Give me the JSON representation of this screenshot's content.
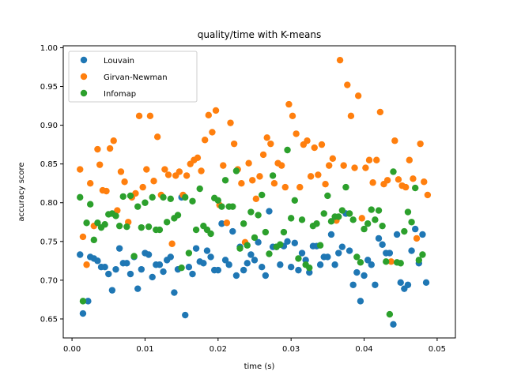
{
  "chart_data": {
    "type": "scatter",
    "title": "quality/time with K-means",
    "xlabel": "time (s)",
    "ylabel": "accuracy score",
    "xlim": [
      -0.0012,
      0.0525
    ],
    "ylim": [
      0.6255,
      1.0025
    ],
    "xticks": [
      0.0,
      0.01,
      0.02,
      0.03,
      0.04,
      0.05
    ],
    "xtick_labels": [
      "0.00",
      "0.01",
      "0.02",
      "0.03",
      "0.04",
      "0.05"
    ],
    "yticks": [
      0.65,
      0.7,
      0.75,
      0.8,
      0.85,
      0.9,
      0.95,
      1.0
    ],
    "ytick_labels": [
      "0.65",
      "0.70",
      "0.75",
      "0.80",
      "0.85",
      "0.90",
      "0.95",
      "1.00"
    ],
    "grid": false,
    "legend": "top-left",
    "series": [
      {
        "name": "Louvain",
        "color": "#1f77b4",
        "points": [
          [
            0.0011,
            0.733
          ],
          [
            0.0015,
            0.657
          ],
          [
            0.0022,
            0.673
          ],
          [
            0.0025,
            0.73
          ],
          [
            0.003,
            0.728
          ],
          [
            0.0035,
            0.725
          ],
          [
            0.004,
            0.717
          ],
          [
            0.0045,
            0.717
          ],
          [
            0.005,
            0.708
          ],
          [
            0.0055,
            0.687
          ],
          [
            0.006,
            0.714
          ],
          [
            0.0065,
            0.741
          ],
          [
            0.007,
            0.722
          ],
          [
            0.0075,
            0.722
          ],
          [
            0.008,
            0.708
          ],
          [
            0.0085,
            0.73
          ],
          [
            0.009,
            0.689
          ],
          [
            0.0095,
            0.714
          ],
          [
            0.01,
            0.735
          ],
          [
            0.0105,
            0.733
          ],
          [
            0.011,
            0.704
          ],
          [
            0.0115,
            0.72
          ],
          [
            0.012,
            0.72
          ],
          [
            0.0125,
            0.711
          ],
          [
            0.013,
            0.726
          ],
          [
            0.0135,
            0.73
          ],
          [
            0.014,
            0.684
          ],
          [
            0.0145,
            0.714
          ],
          [
            0.015,
            0.807
          ],
          [
            0.0155,
            0.655
          ],
          [
            0.016,
            0.717
          ],
          [
            0.0165,
            0.708
          ],
          [
            0.017,
            0.741
          ],
          [
            0.0175,
            0.724
          ],
          [
            0.018,
            0.722
          ],
          [
            0.0185,
            0.738
          ],
          [
            0.019,
            0.73
          ],
          [
            0.0195,
            0.713
          ],
          [
            0.02,
            0.713
          ],
          [
            0.0205,
            0.773
          ],
          [
            0.021,
            0.726
          ],
          [
            0.0215,
            0.72
          ],
          [
            0.022,
            0.763
          ],
          [
            0.0225,
            0.706
          ],
          [
            0.023,
            0.743
          ],
          [
            0.0235,
            0.713
          ],
          [
            0.024,
            0.722
          ],
          [
            0.0245,
            0.733
          ],
          [
            0.025,
            0.726
          ],
          [
            0.0255,
            0.749
          ],
          [
            0.026,
            0.717
          ],
          [
            0.0265,
            0.706
          ],
          [
            0.027,
            0.789
          ],
          [
            0.0275,
            0.743
          ],
          [
            0.028,
            0.743
          ],
          [
            0.0285,
            0.72
          ],
          [
            0.029,
            0.744
          ],
          [
            0.0295,
            0.75
          ],
          [
            0.03,
            0.717
          ],
          [
            0.0305,
            0.748
          ],
          [
            0.031,
            0.713
          ],
          [
            0.0315,
            0.735
          ],
          [
            0.032,
            0.726
          ],
          [
            0.0325,
            0.71
          ],
          [
            0.033,
            0.744
          ],
          [
            0.0335,
            0.744
          ],
          [
            0.034,
            0.72
          ],
          [
            0.0345,
            0.73
          ],
          [
            0.035,
            0.73
          ],
          [
            0.0355,
            0.759
          ],
          [
            0.036,
            0.72
          ],
          [
            0.0365,
            0.735
          ],
          [
            0.037,
            0.743
          ],
          [
            0.0375,
            0.786
          ],
          [
            0.038,
            0.738
          ],
          [
            0.0385,
            0.694
          ],
          [
            0.039,
            0.71
          ],
          [
            0.0395,
            0.673
          ],
          [
            0.04,
            0.706
          ],
          [
            0.0405,
            0.726
          ],
          [
            0.041,
            0.72
          ],
          [
            0.0415,
            0.694
          ],
          [
            0.042,
            0.754
          ],
          [
            0.0425,
            0.746
          ],
          [
            0.043,
            0.735
          ],
          [
            0.0435,
            0.735
          ],
          [
            0.044,
            0.643
          ],
          [
            0.0445,
            0.759
          ],
          [
            0.045,
            0.697
          ],
          [
            0.0455,
            0.689
          ],
          [
            0.046,
            0.694
          ],
          [
            0.0465,
            0.738
          ],
          [
            0.047,
            0.766
          ],
          [
            0.0475,
            0.722
          ],
          [
            0.048,
            0.759
          ],
          [
            0.0485,
            0.697
          ]
        ]
      },
      {
        "name": "Girvan-Newman",
        "color": "#ff7f0e",
        "points": [
          [
            0.0011,
            0.843
          ],
          [
            0.0015,
            0.756
          ],
          [
            0.002,
            0.72
          ],
          [
            0.0025,
            0.825
          ],
          [
            0.003,
            0.77
          ],
          [
            0.0035,
            0.869
          ],
          [
            0.0038,
            0.849
          ],
          [
            0.0042,
            0.816
          ],
          [
            0.0047,
            0.815
          ],
          [
            0.0052,
            0.87
          ],
          [
            0.0057,
            0.88
          ],
          [
            0.0062,
            0.79
          ],
          [
            0.0067,
            0.84
          ],
          [
            0.0072,
            0.827
          ],
          [
            0.0077,
            0.775
          ],
          [
            0.0082,
            0.807
          ],
          [
            0.0087,
            0.812
          ],
          [
            0.0092,
            0.912
          ],
          [
            0.0097,
            0.82
          ],
          [
            0.0102,
            0.843
          ],
          [
            0.0107,
            0.912
          ],
          [
            0.0112,
            0.828
          ],
          [
            0.0117,
            0.885
          ],
          [
            0.0122,
            0.81
          ],
          [
            0.0127,
            0.843
          ],
          [
            0.0132,
            0.836
          ],
          [
            0.0137,
            0.747
          ],
          [
            0.0142,
            0.835
          ],
          [
            0.0147,
            0.84
          ],
          [
            0.0152,
            0.81
          ],
          [
            0.0157,
            0.835
          ],
          [
            0.0162,
            0.85
          ],
          [
            0.0167,
            0.855
          ],
          [
            0.0172,
            0.858
          ],
          [
            0.0177,
            0.841
          ],
          [
            0.0182,
            0.881
          ],
          [
            0.0187,
            0.913
          ],
          [
            0.0192,
            0.891
          ],
          [
            0.0197,
            0.919
          ],
          [
            0.0202,
            0.797
          ],
          [
            0.0207,
            0.848
          ],
          [
            0.0212,
            0.774
          ],
          [
            0.0217,
            0.903
          ],
          [
            0.0222,
            0.876
          ],
          [
            0.0227,
            0.843
          ],
          [
            0.0232,
            0.825
          ],
          [
            0.0237,
            0.749
          ],
          [
            0.0242,
            0.851
          ],
          [
            0.0247,
            0.829
          ],
          [
            0.0252,
            0.805
          ],
          [
            0.0257,
            0.834
          ],
          [
            0.0262,
            0.862
          ],
          [
            0.0267,
            0.884
          ],
          [
            0.0272,
            0.876
          ],
          [
            0.0277,
            0.825
          ],
          [
            0.0282,
            0.851
          ],
          [
            0.0287,
            0.848
          ],
          [
            0.0292,
            0.82
          ],
          [
            0.0297,
            0.927
          ],
          [
            0.0302,
            0.912
          ],
          [
            0.0307,
            0.889
          ],
          [
            0.0312,
            0.82
          ],
          [
            0.0317,
            0.875
          ],
          [
            0.0322,
            0.88
          ],
          [
            0.0327,
            0.834
          ],
          [
            0.0332,
            0.871
          ],
          [
            0.0337,
            0.836
          ],
          [
            0.0342,
            0.875
          ],
          [
            0.0347,
            0.824
          ],
          [
            0.0352,
            0.848
          ],
          [
            0.0357,
            0.857
          ],
          [
            0.0362,
            0.777
          ],
          [
            0.0367,
            0.984
          ],
          [
            0.0372,
            0.848
          ],
          [
            0.0377,
            0.952
          ],
          [
            0.0382,
            0.912
          ],
          [
            0.0387,
            0.845
          ],
          [
            0.0392,
            0.938
          ],
          [
            0.0397,
            0.78
          ],
          [
            0.0402,
            0.845
          ],
          [
            0.0407,
            0.855
          ],
          [
            0.0412,
            0.826
          ],
          [
            0.0417,
            0.855
          ],
          [
            0.0422,
            0.917
          ],
          [
            0.0427,
            0.824
          ],
          [
            0.0432,
            0.829
          ],
          [
            0.0437,
            0.724
          ],
          [
            0.0442,
            0.88
          ],
          [
            0.0447,
            0.83
          ],
          [
            0.0452,
            0.822
          ],
          [
            0.0457,
            0.82
          ],
          [
            0.0462,
            0.855
          ],
          [
            0.0467,
            0.831
          ],
          [
            0.0472,
            0.754
          ],
          [
            0.0477,
            0.876
          ],
          [
            0.0482,
            0.827
          ],
          [
            0.0487,
            0.81
          ]
        ]
      },
      {
        "name": "Infomap",
        "color": "#2ca02c",
        "points": [
          [
            0.0011,
            0.807
          ],
          [
            0.0015,
            0.673
          ],
          [
            0.002,
            0.774
          ],
          [
            0.0025,
            0.798
          ],
          [
            0.003,
            0.752
          ],
          [
            0.0035,
            0.774
          ],
          [
            0.004,
            0.768
          ],
          [
            0.0045,
            0.772
          ],
          [
            0.005,
            0.785
          ],
          [
            0.0055,
            0.786
          ],
          [
            0.006,
            0.783
          ],
          [
            0.0065,
            0.77
          ],
          [
            0.007,
            0.808
          ],
          [
            0.0075,
            0.769
          ],
          [
            0.008,
            0.809
          ],
          [
            0.0085,
            0.731
          ],
          [
            0.009,
            0.795
          ],
          [
            0.0095,
            0.768
          ],
          [
            0.01,
            0.8
          ],
          [
            0.0105,
            0.769
          ],
          [
            0.011,
            0.807
          ],
          [
            0.0115,
            0.765
          ],
          [
            0.012,
            0.765
          ],
          [
            0.0125,
            0.807
          ],
          [
            0.013,
            0.775
          ],
          [
            0.0135,
            0.805
          ],
          [
            0.014,
            0.78
          ],
          [
            0.0145,
            0.784
          ],
          [
            0.015,
            0.716
          ],
          [
            0.0155,
            0.807
          ],
          [
            0.016,
            0.735
          ],
          [
            0.0165,
            0.802
          ],
          [
            0.017,
            0.765
          ],
          [
            0.0175,
            0.818
          ],
          [
            0.018,
            0.77
          ],
          [
            0.0185,
            0.765
          ],
          [
            0.019,
            0.76
          ],
          [
            0.0195,
            0.806
          ],
          [
            0.02,
            0.803
          ],
          [
            0.0205,
            0.795
          ],
          [
            0.021,
            0.829
          ],
          [
            0.0215,
            0.795
          ],
          [
            0.022,
            0.795
          ],
          [
            0.0225,
            0.841
          ],
          [
            0.023,
            0.741
          ],
          [
            0.0235,
            0.773
          ],
          [
            0.024,
            0.745
          ],
          [
            0.0245,
            0.788
          ],
          [
            0.025,
            0.755
          ],
          [
            0.0255,
            0.784
          ],
          [
            0.026,
            0.81
          ],
          [
            0.0265,
            0.762
          ],
          [
            0.027,
            0.734
          ],
          [
            0.0275,
            0.835
          ],
          [
            0.028,
            0.743
          ],
          [
            0.0285,
            0.746
          ],
          [
            0.029,
            0.762
          ],
          [
            0.0295,
            0.868
          ],
          [
            0.03,
            0.78
          ],
          [
            0.0305,
            0.803
          ],
          [
            0.031,
            0.728
          ],
          [
            0.0315,
            0.778
          ],
          [
            0.032,
            0.72
          ],
          [
            0.0325,
            0.716
          ],
          [
            0.033,
            0.77
          ],
          [
            0.0335,
            0.773
          ],
          [
            0.034,
            0.745
          ],
          [
            0.0345,
            0.786
          ],
          [
            0.035,
            0.809
          ],
          [
            0.0355,
            0.776
          ],
          [
            0.036,
            0.782
          ],
          [
            0.0365,
            0.782
          ],
          [
            0.037,
            0.79
          ],
          [
            0.0375,
            0.82
          ],
          [
            0.038,
            0.786
          ],
          [
            0.0385,
            0.778
          ],
          [
            0.039,
            0.73
          ],
          [
            0.0395,
            0.723
          ],
          [
            0.04,
            0.766
          ],
          [
            0.0405,
            0.773
          ],
          [
            0.041,
            0.791
          ],
          [
            0.0415,
            0.778
          ],
          [
            0.042,
            0.79
          ],
          [
            0.0425,
            0.77
          ],
          [
            0.043,
            0.724
          ],
          [
            0.0435,
            0.656
          ],
          [
            0.044,
            0.84
          ],
          [
            0.0445,
            0.723
          ],
          [
            0.045,
            0.722
          ],
          [
            0.0455,
            0.763
          ],
          [
            0.046,
            0.788
          ],
          [
            0.0465,
            0.775
          ],
          [
            0.047,
            0.819
          ],
          [
            0.0475,
            0.726
          ],
          [
            0.048,
            0.733
          ]
        ]
      }
    ]
  }
}
